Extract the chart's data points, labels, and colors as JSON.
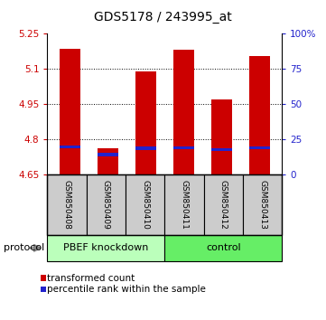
{
  "title": "GDS5178 / 243995_at",
  "samples": [
    "GSM850408",
    "GSM850409",
    "GSM850410",
    "GSM850411",
    "GSM850412",
    "GSM850413"
  ],
  "transformed_counts": [
    5.185,
    4.762,
    5.09,
    5.18,
    4.968,
    5.155
  ],
  "percentile_ranks": [
    19.5,
    14.0,
    18.5,
    19.0,
    17.5,
    19.0
  ],
  "bar_bottom": 4.65,
  "ylim_left": [
    4.65,
    5.25
  ],
  "ylim_right": [
    0,
    100
  ],
  "yticks_left": [
    4.65,
    4.8,
    4.95,
    5.1,
    5.25
  ],
  "ytick_labels_left": [
    "4.65",
    "4.8",
    "4.95",
    "5.1",
    "5.25"
  ],
  "yticks_right": [
    0,
    25,
    50,
    75,
    100
  ],
  "ytick_labels_right": [
    "0",
    "25",
    "50",
    "75",
    "100%"
  ],
  "group_labels": [
    "PBEF knockdown",
    "control"
  ],
  "group_colors": [
    "#bbffbb",
    "#66ee66"
  ],
  "bar_color": "#cc0000",
  "percentile_color": "#2222cc",
  "background_color": "#ffffff",
  "plot_bg_color": "#ffffff",
  "sample_label_bg": "#cccccc",
  "left_tick_color": "#cc0000",
  "right_tick_color": "#2222cc",
  "bar_width": 0.55
}
